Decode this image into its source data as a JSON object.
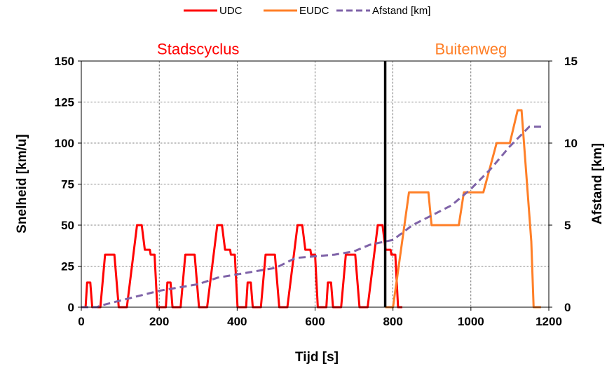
{
  "chart_data": {
    "type": "line",
    "title": "",
    "xlabel": "Tijd [s]",
    "ylabel": "Snelheid [km/u]",
    "y2label": "Afstand [km]",
    "xlim": [
      0,
      1200
    ],
    "ylim": [
      0,
      150
    ],
    "y2lim": [
      0,
      15
    ],
    "xticks": [
      0,
      200,
      400,
      600,
      800,
      1000,
      1200
    ],
    "yticks": [
      0,
      25,
      50,
      75,
      100,
      125,
      150
    ],
    "y2ticks": [
      0,
      5,
      10,
      15
    ],
    "grid": true,
    "legend_position": "top",
    "annotations": [
      {
        "text": "Stadscyclus",
        "color": "#ff0000",
        "x": 300,
        "y": 155
      },
      {
        "text": "Buitenweg",
        "color": "#ff7f27",
        "x": 1000,
        "y": 155
      }
    ],
    "divider_x": 780,
    "series": [
      {
        "name": "UDC",
        "color": "#ff0000",
        "axis": "left",
        "x": [
          0,
          11,
          15,
          23,
          28,
          49,
          61,
          85,
          96,
          117,
          143,
          155,
          163,
          176,
          178,
          188,
          195,
          206,
          206,
          217,
          221,
          229,
          234,
          255,
          267,
          291,
          302,
          323,
          349,
          361,
          369,
          382,
          384,
          394,
          401,
          412,
          412,
          423,
          427,
          435,
          440,
          461,
          473,
          497,
          508,
          529,
          555,
          567,
          575,
          588,
          590,
          600,
          607,
          618,
          618,
          629,
          633,
          641,
          646,
          667,
          679,
          703,
          714,
          735,
          761,
          773,
          781,
          794,
          796,
          806,
          813,
          824
        ],
        "values": [
          0,
          0,
          15,
          15,
          0,
          0,
          32,
          32,
          0,
          0,
          50,
          50,
          35,
          35,
          32,
          32,
          0,
          0,
          0,
          0,
          15,
          15,
          0,
          0,
          32,
          32,
          0,
          0,
          50,
          50,
          35,
          35,
          32,
          32,
          0,
          0,
          0,
          0,
          15,
          15,
          0,
          0,
          32,
          32,
          0,
          0,
          50,
          50,
          35,
          35,
          32,
          32,
          0,
          0,
          0,
          0,
          15,
          15,
          0,
          0,
          32,
          32,
          0,
          0,
          50,
          50,
          35,
          35,
          32,
          32,
          0,
          0
        ]
      },
      {
        "name": "EUDC",
        "color": "#ff7f27",
        "axis": "left",
        "x": [
          780,
          800,
          841,
          891,
          899,
          969,
          982,
          1032,
          1066,
          1100,
          1120,
          1130,
          1155,
          1161,
          1180
        ],
        "values": [
          0,
          0,
          70,
          70,
          50,
          50,
          70,
          70,
          100,
          100,
          120,
          120,
          40,
          0,
          0
        ]
      },
      {
        "name": "Afstand [km]",
        "color": "#7f63a8",
        "axis": "right",
        "x": [
          0,
          40,
          50,
          100,
          150,
          200,
          250,
          300,
          350,
          400,
          450,
          500,
          550,
          600,
          650,
          700,
          740,
          780,
          800,
          850,
          900,
          950,
          1000,
          1050,
          1100,
          1150,
          1170,
          1180
        ],
        "values": [
          0,
          0,
          0.1,
          0.4,
          0.7,
          1.0,
          1.2,
          1.4,
          1.8,
          2.0,
          2.2,
          2.4,
          3.0,
          3.1,
          3.2,
          3.4,
          3.8,
          4.0,
          4.1,
          5.0,
          5.6,
          6.2,
          7.2,
          8.4,
          9.8,
          11.0,
          11.0,
          11.0
        ]
      }
    ]
  }
}
